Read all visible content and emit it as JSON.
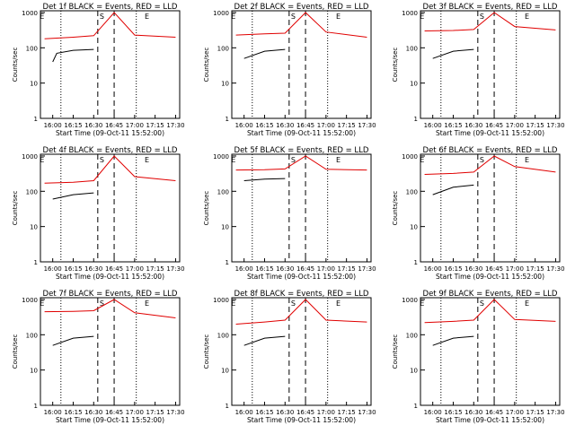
{
  "colors": {
    "events": "#000000",
    "lld": "#e00000",
    "axis": "#000000",
    "background": "#ffffff"
  },
  "common": {
    "ylabel": "Counts/sec",
    "xlabel": "Start Time (09-Oct-11 15:52:00)",
    "xticks": [
      "16:00",
      "16:15",
      "16:30",
      "16:45",
      "17:00",
      "17:15",
      "17:30"
    ],
    "yticks": [
      "1",
      "10",
      "100",
      "1000"
    ],
    "markers": [
      "E",
      "S",
      "E"
    ]
  },
  "chart_data": [
    {
      "type": "line",
      "title": "Det 1f BLACK = Events, RED = LLD",
      "events": [
        [
          16.0,
          40
        ],
        [
          16.05,
          70
        ],
        [
          16.25,
          85
        ],
        [
          16.5,
          90
        ]
      ],
      "lld": [
        [
          15.9,
          180
        ],
        [
          16.25,
          200
        ],
        [
          16.5,
          220
        ],
        [
          16.75,
          1000
        ],
        [
          17.0,
          230
        ],
        [
          17.5,
          200
        ]
      ]
    },
    {
      "type": "line",
      "title": "Det 2f BLACK = Events, RED = LLD",
      "events": [
        [
          16.0,
          50
        ],
        [
          16.25,
          80
        ],
        [
          16.5,
          90
        ]
      ],
      "lld": [
        [
          15.9,
          230
        ],
        [
          16.25,
          250
        ],
        [
          16.5,
          260
        ],
        [
          16.75,
          1000
        ],
        [
          17.0,
          280
        ],
        [
          17.5,
          200
        ]
      ]
    },
    {
      "type": "line",
      "title": "Det 3f BLACK = Events, RED = LLD",
      "events": [
        [
          16.0,
          50
        ],
        [
          16.25,
          80
        ],
        [
          16.5,
          90
        ]
      ],
      "lld": [
        [
          15.9,
          300
        ],
        [
          16.25,
          310
        ],
        [
          16.5,
          330
        ],
        [
          16.75,
          1000
        ],
        [
          17.0,
          400
        ],
        [
          17.5,
          320
        ]
      ]
    },
    {
      "type": "line",
      "title": "Det 4f BLACK = Events, RED = LLD",
      "events": [
        [
          16.0,
          60
        ],
        [
          16.25,
          80
        ],
        [
          16.5,
          90
        ]
      ],
      "lld": [
        [
          15.9,
          170
        ],
        [
          16.25,
          180
        ],
        [
          16.5,
          200
        ],
        [
          16.75,
          1000
        ],
        [
          17.0,
          260
        ],
        [
          17.5,
          200
        ]
      ]
    },
    {
      "type": "line",
      "title": "Det 5f BLACK = Events, RED = LLD",
      "events": [
        [
          16.0,
          200
        ],
        [
          16.25,
          220
        ],
        [
          16.5,
          230
        ]
      ],
      "lld": [
        [
          15.9,
          400
        ],
        [
          16.25,
          410
        ],
        [
          16.5,
          430
        ],
        [
          16.75,
          1000
        ],
        [
          17.0,
          420
        ],
        [
          17.5,
          400
        ]
      ]
    },
    {
      "type": "line",
      "title": "Det 6f BLACK = Events, RED = LLD",
      "events": [
        [
          16.0,
          80
        ],
        [
          16.25,
          130
        ],
        [
          16.5,
          150
        ]
      ],
      "lld": [
        [
          15.9,
          300
        ],
        [
          16.25,
          320
        ],
        [
          16.5,
          350
        ],
        [
          16.75,
          1000
        ],
        [
          17.0,
          500
        ],
        [
          17.5,
          350
        ]
      ]
    },
    {
      "type": "line",
      "title": "Det 7f BLACK = Events, RED = LLD",
      "events": [
        [
          16.0,
          50
        ],
        [
          16.25,
          80
        ],
        [
          16.5,
          90
        ]
      ],
      "lld": [
        [
          15.9,
          450
        ],
        [
          16.25,
          460
        ],
        [
          16.5,
          480
        ],
        [
          16.75,
          1000
        ],
        [
          17.0,
          420
        ],
        [
          17.5,
          300
        ]
      ]
    },
    {
      "type": "line",
      "title": "Det 8f BLACK = Events, RED = LLD",
      "events": [
        [
          16.0,
          50
        ],
        [
          16.25,
          80
        ],
        [
          16.5,
          90
        ]
      ],
      "lld": [
        [
          15.9,
          200
        ],
        [
          16.25,
          230
        ],
        [
          16.5,
          260
        ],
        [
          16.75,
          1000
        ],
        [
          17.0,
          260
        ],
        [
          17.5,
          230
        ]
      ]
    },
    {
      "type": "line",
      "title": "Det 9f BLACK = Events, RED = LLD",
      "events": [
        [
          16.0,
          50
        ],
        [
          16.25,
          80
        ],
        [
          16.5,
          90
        ]
      ],
      "lld": [
        [
          15.9,
          220
        ],
        [
          16.25,
          240
        ],
        [
          16.5,
          260
        ],
        [
          16.75,
          1000
        ],
        [
          17.0,
          270
        ],
        [
          17.5,
          240
        ]
      ]
    }
  ]
}
